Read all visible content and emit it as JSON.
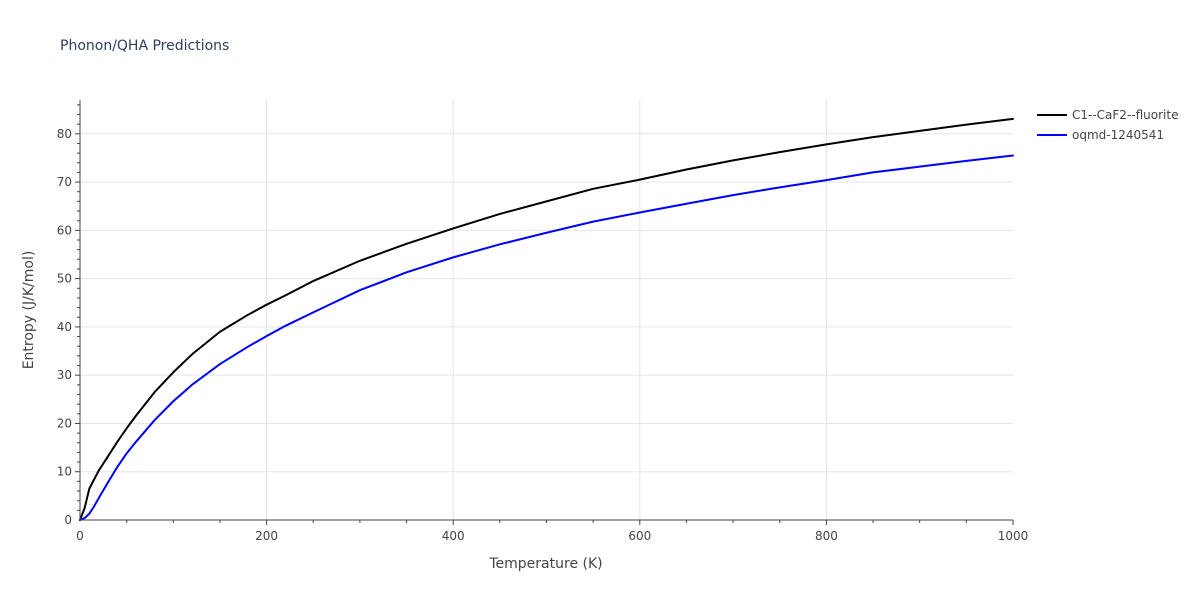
{
  "chart_data": {
    "type": "line",
    "title": "Phonon/QHA Predictions",
    "xlabel": "Temperature (K)",
    "ylabel": "Entropy (J/K/mol)",
    "xlim": [
      0,
      1000
    ],
    "ylim": [
      0,
      87
    ],
    "xticks": [
      0,
      200,
      400,
      600,
      800,
      1000
    ],
    "yticks": [
      0,
      10,
      20,
      30,
      40,
      50,
      60,
      70,
      80
    ],
    "grid": true,
    "legend_position": "top-right",
    "series": [
      {
        "name": "C1--CaF2--fluorite",
        "color": "#000000",
        "x": [
          0,
          5,
          10,
          20,
          30,
          40,
          50,
          60,
          80,
          100,
          120,
          150,
          180,
          200,
          220,
          250,
          300,
          350,
          400,
          450,
          500,
          550,
          600,
          650,
          700,
          750,
          800,
          850,
          900,
          950,
          1000
        ],
        "y": [
          0,
          2.5,
          6.5,
          10.2,
          13.2,
          16.2,
          19.0,
          21.6,
          26.5,
          30.6,
          34.3,
          39.0,
          42.5,
          44.6,
          46.5,
          49.5,
          53.7,
          57.2,
          60.4,
          63.4,
          66.0,
          68.6,
          70.5,
          72.6,
          74.5,
          76.2,
          77.8,
          79.3,
          80.6,
          81.9,
          83.1
        ]
      },
      {
        "name": "oqmd-1240541",
        "color": "#0000ff",
        "x": [
          0,
          5,
          10,
          15,
          20,
          30,
          40,
          50,
          60,
          80,
          100,
          120,
          150,
          180,
          200,
          220,
          250,
          300,
          350,
          400,
          450,
          500,
          550,
          600,
          650,
          700,
          750,
          800,
          850,
          900,
          950,
          1000
        ],
        "y": [
          0,
          0.4,
          1.3,
          2.8,
          4.5,
          7.8,
          11.0,
          13.8,
          16.2,
          20.7,
          24.6,
          28.0,
          32.3,
          35.9,
          38.1,
          40.2,
          43.0,
          47.6,
          51.3,
          54.4,
          57.1,
          59.5,
          61.8,
          63.7,
          65.5,
          67.3,
          68.9,
          70.4,
          72.0,
          73.2,
          74.4,
          75.5
        ]
      }
    ]
  }
}
